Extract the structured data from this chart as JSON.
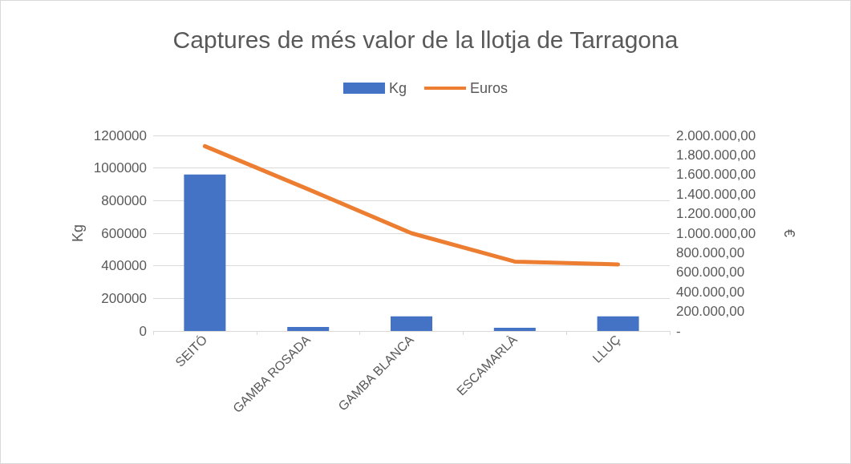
{
  "chart_data": {
    "type": "bar",
    "title": "Captures de més valor de la llotja de Tarragona",
    "ylabel": "Kg",
    "y2label": "€",
    "categories": [
      "SEITÓ",
      "GAMBA ROSADA",
      "GAMBA BLANCA",
      "ESCAMARLÀ",
      "LLUÇ"
    ],
    "series": [
      {
        "name": "Kg",
        "color": "#4472c4",
        "values": [
          960000,
          25000,
          90000,
          20000,
          90000
        ]
      },
      {
        "name": "Euros",
        "type": "line",
        "axis": "y2",
        "color": "#ed7d31",
        "values": [
          1890000,
          1450000,
          1000000,
          710000,
          680000
        ]
      }
    ],
    "ylim": [
      0,
      1200000
    ],
    "yticks": [
      0,
      200000,
      400000,
      600000,
      800000,
      1000000,
      1200000
    ],
    "y2lim": [
      0,
      2000000
    ],
    "y2ticks": [
      {
        "value": 0,
        "label": "-"
      },
      {
        "value": 200000,
        "label": "200.000,00"
      },
      {
        "value": 400000,
        "label": "400.000,00"
      },
      {
        "value": 600000,
        "label": "600.000,00"
      },
      {
        "value": 800000,
        "label": "800.000,00"
      },
      {
        "value": 1000000,
        "label": "1.000.000,00"
      },
      {
        "value": 1200000,
        "label": "1.200.000,00"
      },
      {
        "value": 1400000,
        "label": "1.400.000,00"
      },
      {
        "value": 1600000,
        "label": "1.600.000,00"
      },
      {
        "value": 1800000,
        "label": "1.800.000,00"
      },
      {
        "value": 2000000,
        "label": "2.000.000,00"
      }
    ],
    "grid": "y",
    "legend": "top",
    "marker": "none"
  }
}
